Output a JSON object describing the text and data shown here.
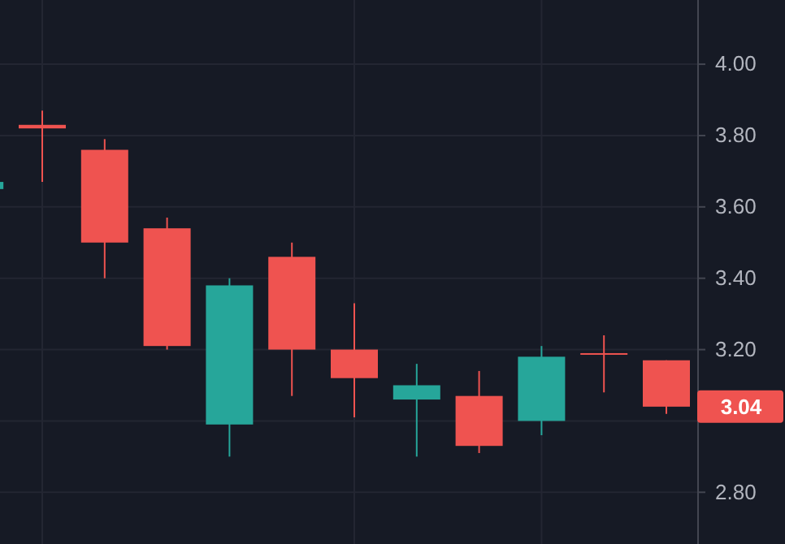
{
  "chart_data": {
    "type": "candlestick",
    "categories": [
      null,
      null,
      null,
      null,
      null,
      null,
      null,
      null,
      null,
      null,
      null,
      null
    ],
    "ohlc": [
      [
        3.65,
        3.67,
        3.65,
        3.67
      ],
      [
        3.83,
        3.87,
        3.67,
        3.82
      ],
      [
        3.76,
        3.79,
        3.4,
        3.5
      ],
      [
        3.54,
        3.57,
        3.2,
        3.21
      ],
      [
        2.99,
        3.4,
        2.9,
        3.38
      ],
      [
        3.46,
        3.5,
        3.07,
        3.2
      ],
      [
        3.2,
        3.33,
        3.01,
        3.12
      ],
      [
        3.06,
        3.16,
        2.9,
        3.1
      ],
      [
        3.07,
        3.14,
        2.91,
        2.93
      ],
      [
        3.0,
        3.21,
        2.96,
        3.18
      ],
      [
        3.19,
        3.24,
        3.08,
        3.19
      ],
      [
        3.17,
        3.17,
        3.02,
        3.04
      ]
    ],
    "colors": [
      "#26a69a",
      "#ef5350",
      "#ef5350",
      "#ef5350",
      "#26a69a",
      "#ef5350",
      "#ef5350",
      "#26a69a",
      "#ef5350",
      "#26a69a",
      "#ef5350",
      "#ef5350"
    ],
    "ylim": [
      2.655,
      4.18
    ],
    "yticks": [
      {
        "value": 2.8,
        "label": "2.80"
      },
      {
        "value": 3.0,
        "label": null
      },
      {
        "value": 3.2,
        "label": "3.20"
      },
      {
        "value": 3.4,
        "label": "3.40"
      },
      {
        "value": 3.6,
        "label": "3.60"
      },
      {
        "value": 3.8,
        "label": "3.80"
      },
      {
        "value": 4.0,
        "label": "4.00"
      }
    ],
    "annotations": [
      "3.04"
    ],
    "grid": true,
    "tick_labels": "y"
  }
}
